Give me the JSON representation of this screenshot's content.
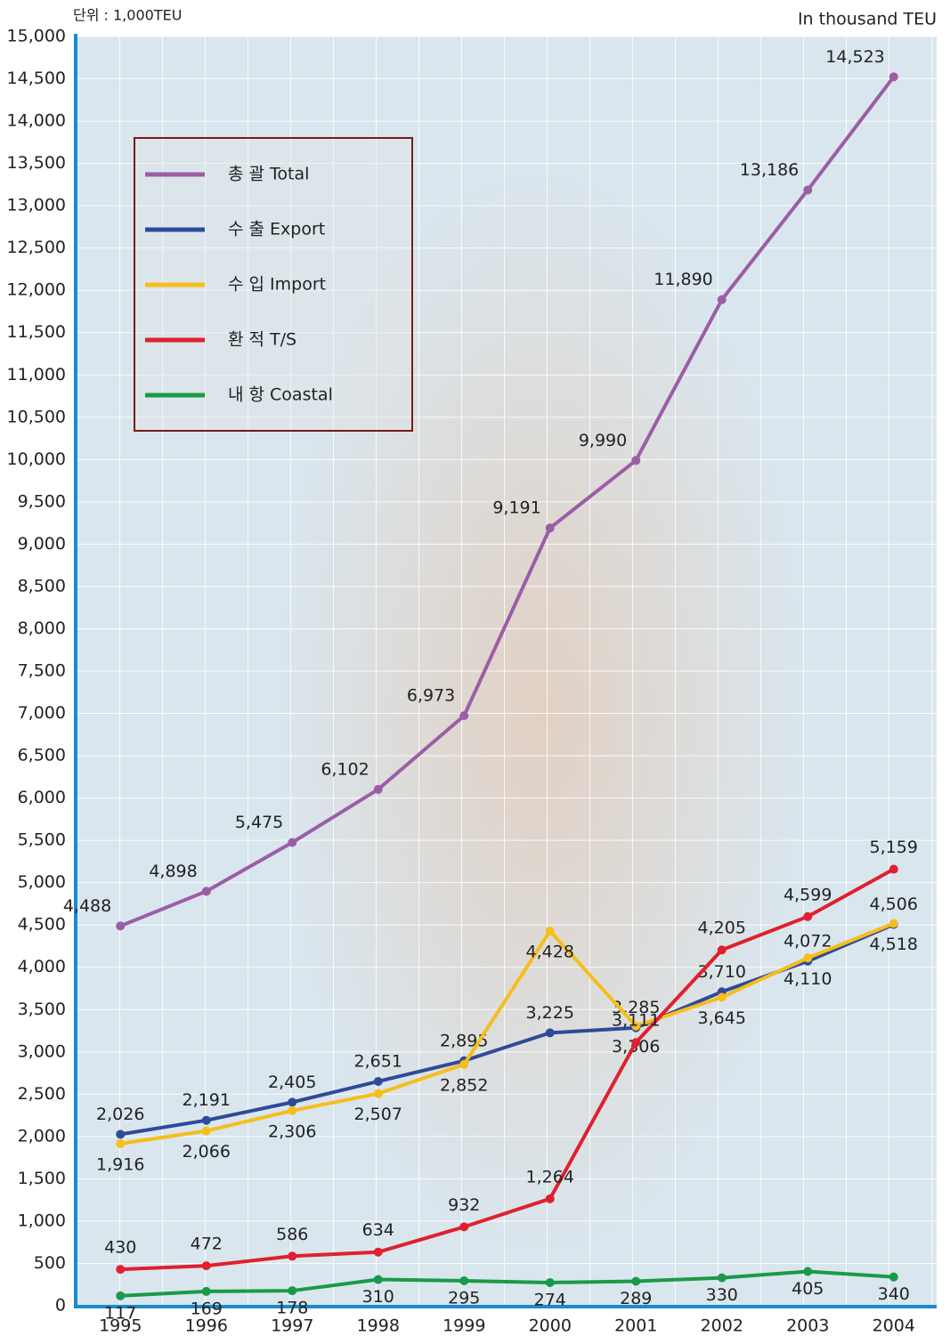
{
  "chart_data": {
    "type": "line",
    "unit_label_left": "단위 : 1,000TEU",
    "unit_label_right": "In thousand TEU",
    "categories": [
      "1995",
      "1996",
      "1997",
      "1998",
      "1999",
      "2000",
      "2001",
      "2002",
      "2003",
      "2004"
    ],
    "series": [
      {
        "name": "총 괄 Total",
        "color": "#9b5ea6",
        "values": [
          4488,
          4898,
          5475,
          6102,
          6973,
          9191,
          9990,
          11890,
          13186,
          14523
        ],
        "value_labels": [
          "4,488",
          "4,898",
          "5,475",
          "6,102",
          "6,973",
          "9,191",
          "9,990",
          "11,890",
          "13,186",
          "14,523"
        ]
      },
      {
        "name": "수 출 Export",
        "color": "#2e4a9a",
        "values": [
          2026,
          2191,
          2405,
          2651,
          2895,
          3225,
          3285,
          3710,
          4072,
          4506
        ],
        "value_labels": [
          "2,026",
          "2,191",
          "2,405",
          "2,651",
          "2,895",
          "3,225",
          "3,285",
          "3,710",
          "4,072",
          "4,506"
        ]
      },
      {
        "name": "수 입 Import",
        "color": "#f5be1a",
        "values": [
          1916,
          2066,
          2306,
          2507,
          2852,
          4428,
          3306,
          3645,
          4110,
          4518
        ],
        "value_labels": [
          "1,916",
          "2,066",
          "2,306",
          "2,507",
          "2,852",
          "4,428",
          "3,306",
          "3,645",
          "4,110",
          "4,518"
        ]
      },
      {
        "name": "환 적 T/S",
        "color": "#e0202e",
        "values": [
          430,
          472,
          586,
          634,
          932,
          1264,
          3111,
          4205,
          4599,
          5159
        ],
        "value_labels": [
          "430",
          "472",
          "586",
          "634",
          "932",
          "1,264",
          "3,111",
          "4,205",
          "4,599",
          "5,159"
        ]
      },
      {
        "name": "내 항 Coastal",
        "color": "#1a9a48",
        "values": [
          117,
          169,
          178,
          310,
          295,
          274,
          289,
          330,
          405,
          340
        ]
      }
    ],
    "ylim": [
      0,
      15000
    ],
    "yticks": [
      0,
      500,
      {
        "value": 1000,
        "label": "1,000"
      },
      {
        "value": 1500,
        "label": "1,500"
      },
      {
        "value": 2000,
        "label": "2,000"
      },
      {
        "value": 2500,
        "label": "2,500"
      },
      {
        "value": 3000,
        "label": "3,000"
      },
      {
        "value": 3500,
        "label": "3,500"
      },
      {
        "value": 4000,
        "label": "4,000"
      },
      {
        "value": 4500,
        "label": "4,500"
      },
      {
        "value": 5000,
        "label": "5,000"
      },
      {
        "value": 5500,
        "label": "5,500"
      },
      {
        "value": 6000,
        "label": "6,000"
      },
      {
        "value": 6500,
        "label": "6,500"
      },
      {
        "value": 7000,
        "label": "7,000"
      },
      {
        "value": 7500,
        "label": "7,500"
      },
      {
        "value": 8000,
        "label": "8,000"
      },
      {
        "value": 8500,
        "label": "8,500"
      },
      {
        "value": 9000,
        "label": "9,000"
      },
      {
        "value": 9500,
        "label": "9,500"
      },
      {
        "value": 10000,
        "label": "10,000"
      },
      {
        "value": 10500,
        "label": "10,500"
      },
      {
        "value": 11000,
        "label": "11,000"
      },
      {
        "value": 11500,
        "label": "11,500"
      },
      {
        "value": 12000,
        "label": "12,000"
      },
      {
        "value": 12500,
        "label": "12,500"
      },
      {
        "value": 13000,
        "label": "13,000"
      },
      {
        "value": 13500,
        "label": "13,500"
      },
      {
        "value": 14000,
        "label": "14,000"
      },
      {
        "value": 14500,
        "label": "14,500"
      },
      {
        "value": 15000,
        "label": "15,000"
      }
    ],
    "grid": true
  }
}
